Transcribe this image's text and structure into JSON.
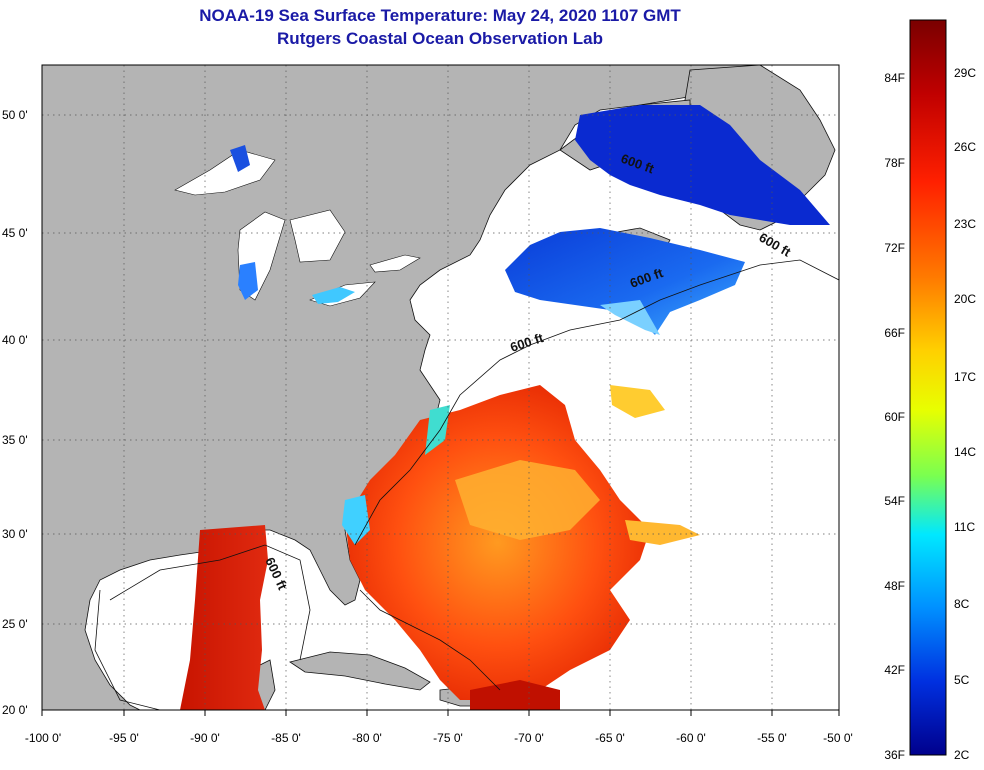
{
  "title_line1": "NOAA-19 Sea Surface Temperature:  May 24, 2020 1107 GMT",
  "title_line2": "Rutgers Coastal Ocean Observation Lab",
  "map": {
    "lat_labels": [
      "50 0'",
      "45 0'",
      "40 0'",
      "35 0'",
      "30 0'",
      "25 0'",
      "20 0'"
    ],
    "lon_labels": [
      "-100 0'",
      "-95 0'",
      "-90 0'",
      "-85 0'",
      "-80 0'",
      "-75 0'",
      "-70 0'",
      "-65 0'",
      "-60 0'",
      "-55 0'",
      "-50 0'"
    ],
    "contour_labels": [
      "600 ft",
      "600 ft",
      "600 ft",
      "600 ft",
      "600 ft"
    ],
    "land_color": "#b4b4b4",
    "grid": true
  },
  "colorbar": {
    "fahrenheit_labels": [
      "84F",
      "78F",
      "72F",
      "66F",
      "60F",
      "54F",
      "48F",
      "42F",
      "36F"
    ],
    "celsius_labels": [
      "29C",
      "26C",
      "23C",
      "20C",
      "17C",
      "14C",
      "11C",
      "8C",
      "5C",
      "2C"
    ],
    "colors": [
      "#7a0000",
      "#c00000",
      "#ff2000",
      "#ff7a00",
      "#ffd000",
      "#e8ff00",
      "#7aff50",
      "#00e8ff",
      "#0090ff",
      "#0030e0",
      "#00008c"
    ]
  }
}
